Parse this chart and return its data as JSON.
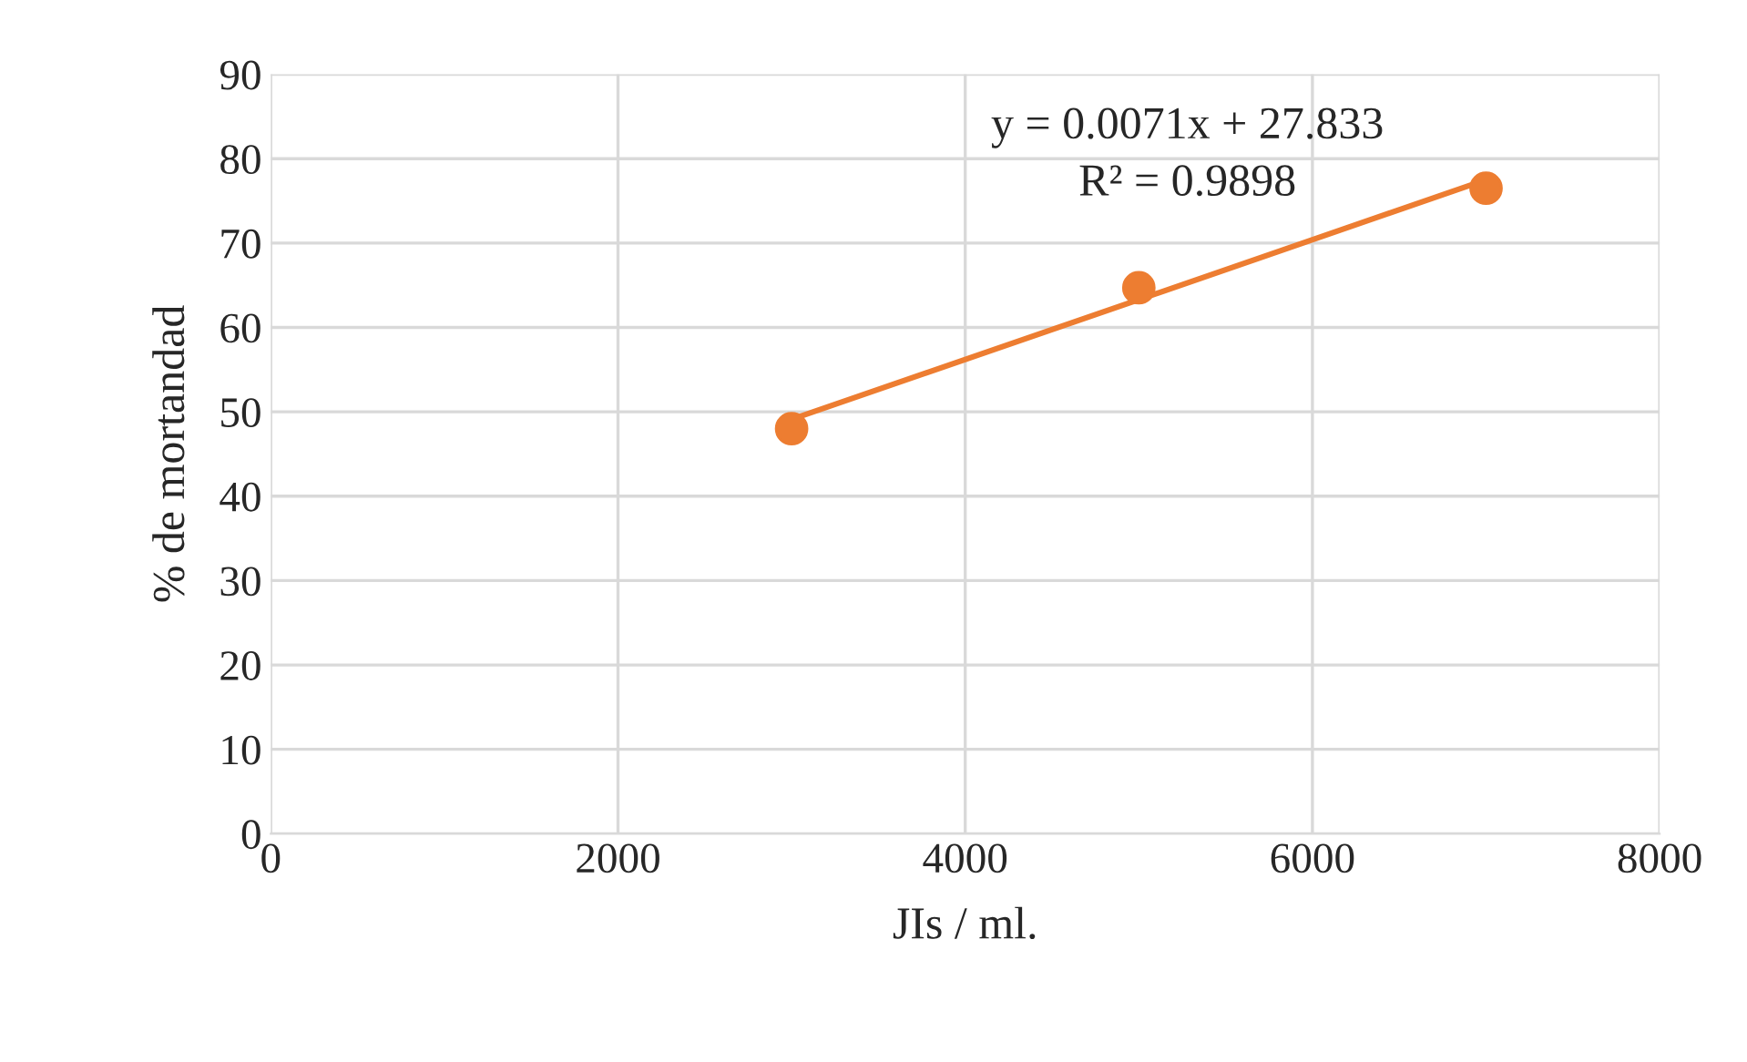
{
  "chart_data": {
    "type": "scatter",
    "xlabel": "JIs / ml.",
    "ylabel": "% de mortandad",
    "xlim": [
      0,
      8000
    ],
    "xticks": [
      0,
      2000,
      4000,
      6000,
      8000
    ],
    "ylim": [
      0,
      90
    ],
    "yticks": [
      0,
      10,
      20,
      30,
      40,
      50,
      60,
      70,
      80,
      90
    ],
    "grid": true,
    "legend": false,
    "marker": "circle",
    "series": [
      {
        "color": "#ed7d31",
        "x": [
          3000,
          5000,
          7000
        ],
        "values": [
          48,
          64.7,
          76.5
        ]
      },
      {
        "type": "line",
        "color": "#ed7d31",
        "x": [
          3000,
          7000
        ],
        "values": [
          49.1,
          77.5
        ],
        "marker": "none",
        "line_style": "solid"
      }
    ],
    "annotations": [
      "y = 0.0071x + 27.833",
      "R² = 0.9898"
    ]
  }
}
